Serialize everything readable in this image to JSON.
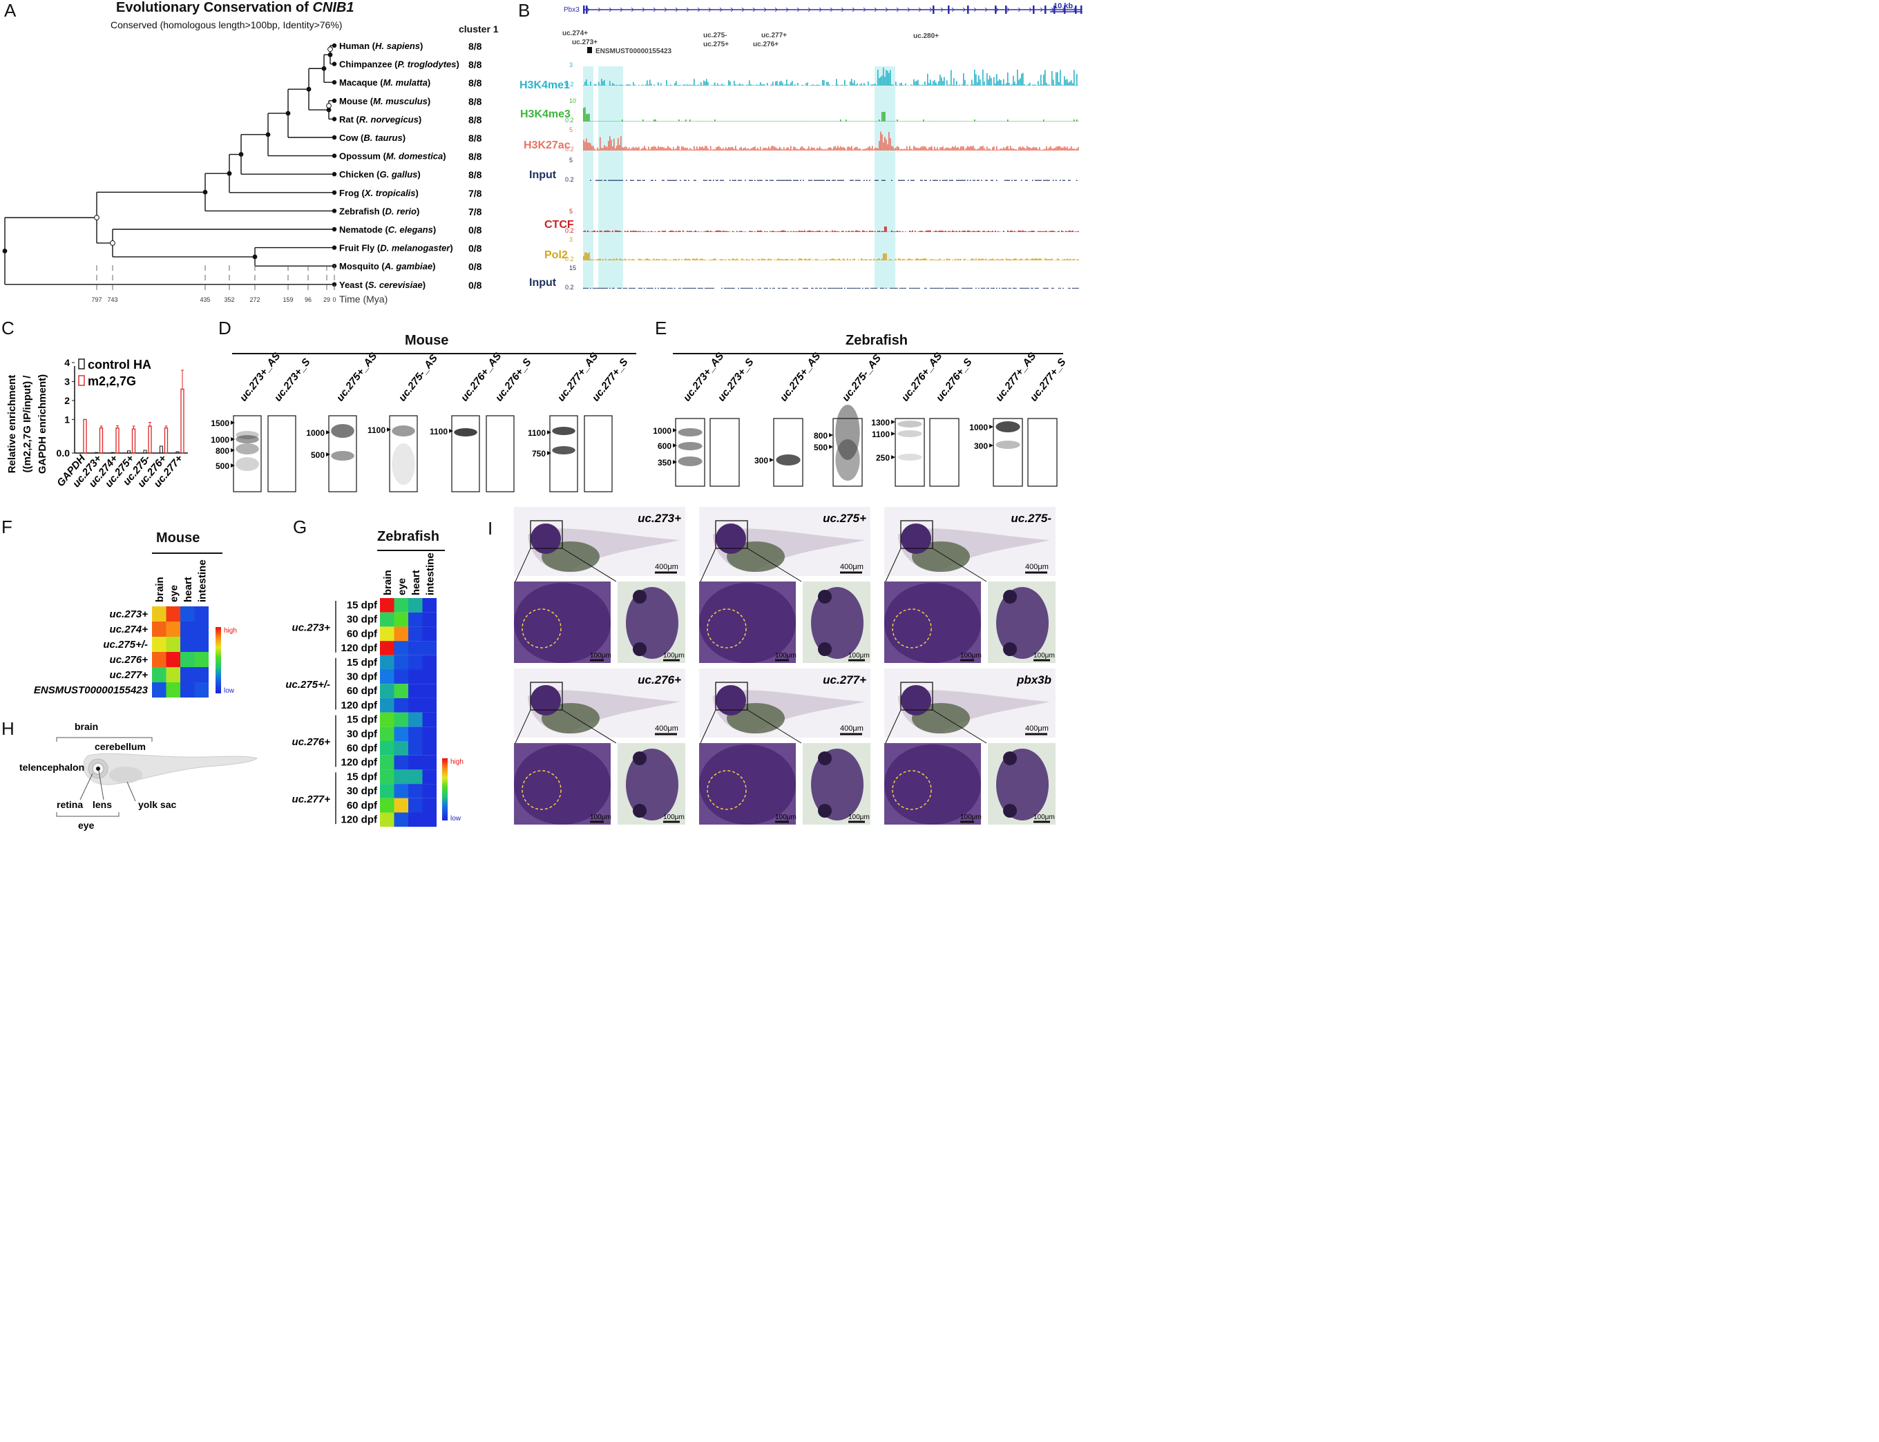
{
  "panels": {
    "A": "A",
    "B": "B",
    "C": "C",
    "D": "D",
    "E": "E",
    "F": "F",
    "G": "G",
    "H": "H",
    "I": "I"
  },
  "panelA": {
    "title_prefix": "Evolutionary Conservation of ",
    "title_gene": "CNIB1",
    "subtitle": "Conserved (homologous length>100bp, Identity>76%)",
    "cluster_header": "cluster 1",
    "species": [
      {
        "common": "Human",
        "sci": "H. sapiens",
        "score": "8/8"
      },
      {
        "common": "Chimpanzee",
        "sci": "P. troglodytes",
        "score": "8/8"
      },
      {
        "common": "Macaque",
        "sci": "M. mulatta",
        "score": "8/8"
      },
      {
        "common": "Mouse",
        "sci": "M. musculus",
        "score": "8/8"
      },
      {
        "common": "Rat",
        "sci": "R. norvegicus",
        "score": "8/8"
      },
      {
        "common": "Cow",
        "sci": "B. taurus",
        "score": "8/8"
      },
      {
        "common": "Opossum",
        "sci": "M. domestica",
        "score": "8/8"
      },
      {
        "common": "Chicken",
        "sci": "G. gallus",
        "score": "8/8"
      },
      {
        "common": "Frog",
        "sci": "X. tropicalis",
        "score": "7/8"
      },
      {
        "common": "Zebrafish",
        "sci": "D. rerio",
        "score": "7/8"
      },
      {
        "common": "Nematode",
        "sci": "C. elegans",
        "score": "0/8"
      },
      {
        "common": "Fruit Fly",
        "sci": "D. melanogaster",
        "score": "0/8"
      },
      {
        "common": "Mosquito",
        "sci": "A. gambiae",
        "score": "0/8"
      },
      {
        "common": "Yeast",
        "sci": "S. cerevisiae",
        "score": "0/8"
      }
    ],
    "time_ticks": [
      "797",
      "743",
      "435",
      "352",
      "272",
      "159",
      "96",
      "29",
      "0"
    ],
    "time_label": "Time (Mya)"
  },
  "panelB": {
    "gene": "Pbx3",
    "scale": "10 kb",
    "uc_labels": [
      "uc.274+",
      "uc.273+",
      "uc.275-",
      "uc.275+",
      "uc.277+",
      "uc.276+",
      "uc.280+"
    ],
    "transcript": "ENSMUST00000155423",
    "tracks": [
      {
        "name": "H3K4me1",
        "max": "3",
        "min": "0.2",
        "color": "#2bb5c8"
      },
      {
        "name": "H3K4me3",
        "max": "10",
        "min": "0.2",
        "color": "#3cb43c"
      },
      {
        "name": "H3K27ac",
        "max": "5",
        "min": "0.2",
        "color": "#e87462"
      },
      {
        "name": "Input",
        "max": "5",
        "min": "0.2",
        "color": "#1f3060"
      },
      {
        "name": "CTCF",
        "max": "5",
        "min": "0.2",
        "color": "#cc2020"
      },
      {
        "name": "Pol2",
        "max": "3",
        "min": "0.2",
        "color": "#d4a41c"
      },
      {
        "name": "Input",
        "max": "15",
        "min": "0.2",
        "color": "#1f3060"
      }
    ]
  },
  "panelC": {
    "ylabel_line1": "Relative enrichment",
    "ylabel_line2": "((m2,2,7G IP/input) /",
    "ylabel_line3": "GAPDH enrichment)",
    "legend": [
      "control HA",
      "m2,2,7G"
    ],
    "yticks": [
      "0.0",
      "1",
      "2",
      "3",
      "4"
    ],
    "chart_data": {
      "type": "bar",
      "categories": [
        "GAPDH",
        "uc.273+",
        "uc.274+",
        "uc.275+",
        "uc.275-",
        "uc.276+",
        "uc.277+"
      ],
      "series": [
        {
          "name": "control HA",
          "values": [
            0.0,
            0.02,
            0.02,
            0.08,
            0.1,
            0.25,
            0.05
          ]
        },
        {
          "name": "m2,2,7G",
          "values": [
            1.0,
            0.55,
            0.55,
            0.5,
            0.65,
            0.55,
            2.6
          ]
        }
      ],
      "errors": [
        0,
        0.1,
        0.12,
        0.15,
        0.2,
        0.1,
        1.0
      ],
      "ylim": [
        0,
        4
      ]
    }
  },
  "panelD": {
    "title": "Mouse",
    "lanes": [
      "uc.273+_AS",
      "uc.273+_S",
      "uc.275+_AS",
      "uc.275-_AS",
      "uc.276+_AS",
      "uc.276+_S",
      "uc.277+_AS",
      "uc.277+_S"
    ],
    "markers": {
      "g1": [
        "1500",
        "1000",
        "800",
        "500"
      ],
      "g2": [
        "1000",
        "500"
      ],
      "g3": [
        "1100"
      ],
      "g4": [
        "1100"
      ],
      "g5": [
        "1100",
        "750"
      ]
    }
  },
  "panelE": {
    "title": "Zebrafish",
    "lanes": [
      "uc.273+_AS",
      "uc.273+_S",
      "uc.275+_AS",
      "uc.275-_AS",
      "uc.276+_AS",
      "uc.276+_S",
      "uc.277+_AS",
      "uc.277+_S"
    ],
    "markers": {
      "g1": [
        "1000",
        "600",
        "350"
      ],
      "g2": [
        "300"
      ],
      "g3": [
        "800",
        "500"
      ],
      "g4": [
        "1300",
        "1100",
        "250"
      ],
      "g5": [
        "1000",
        "300"
      ]
    }
  },
  "panelF": {
    "title": "Mouse",
    "cols": [
      "brain",
      "eye",
      "heart",
      "intestine"
    ],
    "rows": [
      "uc.273+",
      "uc.274+",
      "uc.275+/-",
      "uc.276+",
      "uc.277+",
      "ENSMUST00000155423"
    ],
    "values": [
      [
        0.75,
        0.95,
        0.15,
        0.1
      ],
      [
        0.9,
        0.85,
        0.1,
        0.1
      ],
      [
        0.7,
        0.65,
        0.1,
        0.1
      ],
      [
        0.9,
        1.0,
        0.45,
        0.5
      ],
      [
        0.45,
        0.65,
        0.1,
        0.1
      ],
      [
        0.15,
        0.55,
        0.1,
        0.15
      ]
    ],
    "legend_high": "high",
    "legend_low": "low"
  },
  "panelG": {
    "title": "Zebrafish",
    "cols": [
      "brain",
      "eye",
      "heart",
      "intestine"
    ],
    "groups": [
      "uc.273+",
      "uc.275+/-",
      "uc.276+",
      "uc.277+"
    ],
    "stages": [
      "15 dpf",
      "30 dpf",
      "60 dpf",
      "120 dpf"
    ],
    "values": [
      [
        1.0,
        0.45,
        0.35,
        0.05
      ],
      [
        0.45,
        0.55,
        0.1,
        0.05
      ],
      [
        0.7,
        0.85,
        0.1,
        0.05
      ],
      [
        1.0,
        0.15,
        0.1,
        0.1
      ],
      [
        0.3,
        0.15,
        0.1,
        0.05
      ],
      [
        0.25,
        0.1,
        0.05,
        0.05
      ],
      [
        0.35,
        0.5,
        0.05,
        0.05
      ],
      [
        0.3,
        0.1,
        0.05,
        0.05
      ],
      [
        0.55,
        0.45,
        0.3,
        0.05
      ],
      [
        0.5,
        0.25,
        0.1,
        0.05
      ],
      [
        0.4,
        0.35,
        0.1,
        0.05
      ],
      [
        0.45,
        0.1,
        0.05,
        0.05
      ],
      [
        0.45,
        0.35,
        0.35,
        0.05
      ],
      [
        0.4,
        0.2,
        0.1,
        0.05
      ],
      [
        0.55,
        0.75,
        0.1,
        0.05
      ],
      [
        0.65,
        0.15,
        0.05,
        0.05
      ]
    ],
    "legend_high": "high",
    "legend_low": "low"
  },
  "panelH": {
    "labels": {
      "brain": "brain",
      "cerebellum": "cerebellum",
      "telencephalon": "telencephalon",
      "retina": "retina",
      "lens": "lens",
      "eye": "eye",
      "yolk": "yolk sac"
    }
  },
  "panelI": {
    "probes": [
      "uc.273+",
      "uc.275+",
      "uc.275-",
      "uc.276+",
      "uc.277+",
      "pbx3b"
    ],
    "scale_big": "400μm",
    "scale_small": "100μm"
  }
}
